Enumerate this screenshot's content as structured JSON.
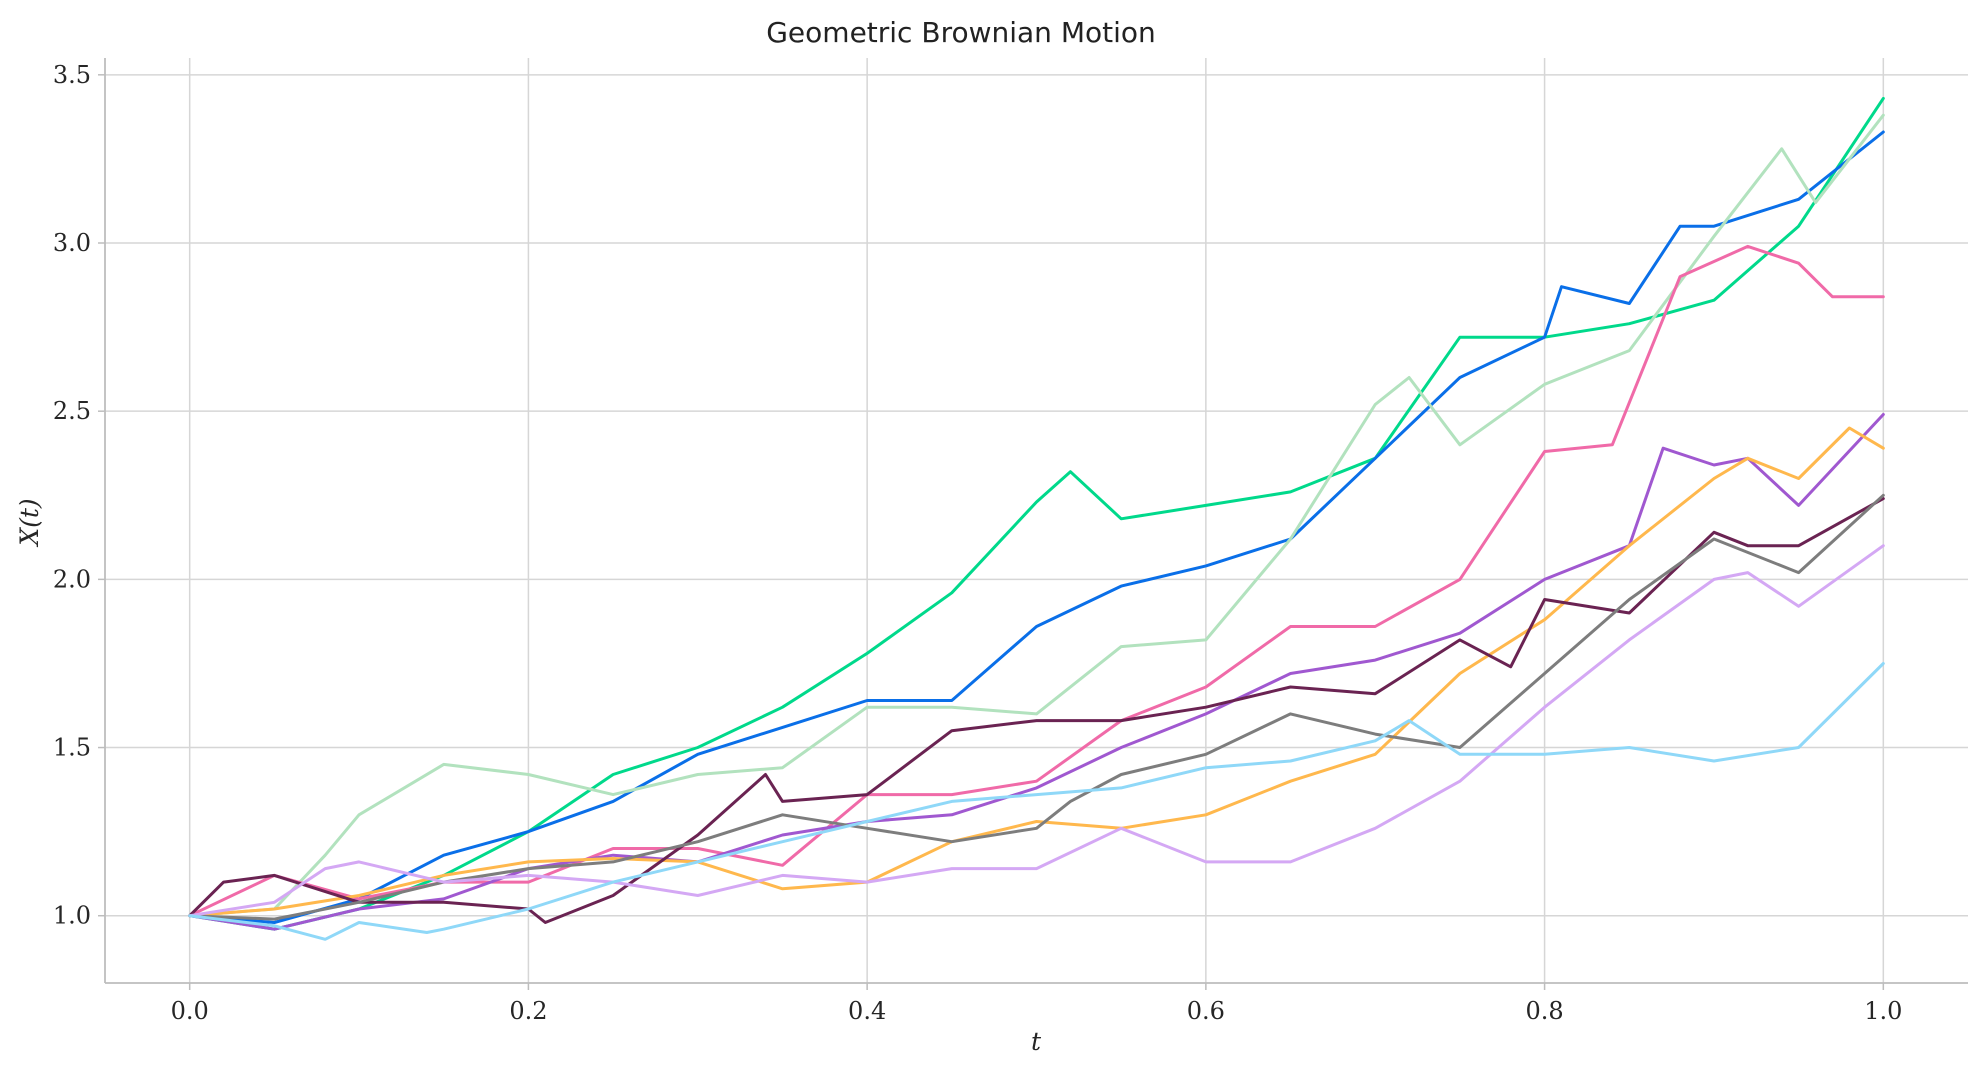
{
  "chart_data": {
    "type": "line",
    "title": "Geometric Brownian Motion",
    "xlabel": "t",
    "ylabel": "X(t)",
    "xlim": [
      -0.05,
      1.05
    ],
    "ylim": [
      0.8,
      3.55
    ],
    "xticks": [
      0.0,
      0.2,
      0.4,
      0.6,
      0.8,
      1.0
    ],
    "xtick_labels": [
      "0.0",
      "0.2",
      "0.4",
      "0.6",
      "0.8",
      "1.0"
    ],
    "yticks": [
      1.0,
      1.5,
      2.0,
      2.5,
      3.0,
      3.5
    ],
    "ytick_labels": [
      "1.0",
      "1.5",
      "2.0",
      "2.5",
      "3.0",
      "3.5"
    ],
    "grid": true,
    "legend": "none",
    "series": [
      {
        "color": "#00d98b",
        "x": [
          0,
          0.05,
          0.1,
          0.15,
          0.2,
          0.25,
          0.3,
          0.35,
          0.4,
          0.45,
          0.5,
          0.52,
          0.55,
          0.6,
          0.65,
          0.7,
          0.75,
          0.8,
          0.85,
          0.9,
          0.95,
          1.0
        ],
        "y": [
          1.0,
          0.96,
          1.02,
          1.12,
          1.25,
          1.42,
          1.5,
          1.62,
          1.78,
          1.96,
          2.23,
          2.32,
          2.18,
          2.22,
          2.26,
          2.36,
          2.72,
          2.72,
          2.76,
          2.83,
          3.05,
          3.43
        ]
      },
      {
        "color": "#0a6fe8",
        "x": [
          0,
          0.05,
          0.1,
          0.15,
          0.2,
          0.25,
          0.3,
          0.35,
          0.4,
          0.45,
          0.5,
          0.55,
          0.6,
          0.65,
          0.7,
          0.75,
          0.8,
          0.81,
          0.85,
          0.88,
          0.9,
          0.95,
          1.0
        ],
        "y": [
          1.0,
          0.98,
          1.05,
          1.18,
          1.25,
          1.34,
          1.48,
          1.56,
          1.64,
          1.64,
          1.86,
          1.98,
          2.04,
          2.12,
          2.36,
          2.6,
          2.72,
          2.87,
          2.82,
          3.05,
          3.05,
          3.13,
          3.33
        ]
      },
      {
        "color": "#b2e2be",
        "x": [
          0,
          0.05,
          0.08,
          0.1,
          0.15,
          0.2,
          0.25,
          0.3,
          0.35,
          0.4,
          0.45,
          0.5,
          0.55,
          0.6,
          0.65,
          0.7,
          0.72,
          0.75,
          0.8,
          0.85,
          0.9,
          0.94,
          0.96,
          1.0
        ],
        "y": [
          1.0,
          1.02,
          1.18,
          1.3,
          1.45,
          1.42,
          1.36,
          1.42,
          1.44,
          1.62,
          1.62,
          1.6,
          1.8,
          1.82,
          2.12,
          2.52,
          2.6,
          2.4,
          2.58,
          2.68,
          3.02,
          3.28,
          3.12,
          3.38
        ]
      },
      {
        "color": "#f06aa8",
        "x": [
          0,
          0.05,
          0.1,
          0.15,
          0.2,
          0.25,
          0.3,
          0.35,
          0.4,
          0.45,
          0.5,
          0.55,
          0.6,
          0.65,
          0.7,
          0.75,
          0.8,
          0.84,
          0.88,
          0.92,
          0.95,
          0.97,
          1.0
        ],
        "y": [
          1.0,
          1.12,
          1.05,
          1.1,
          1.1,
          1.2,
          1.2,
          1.15,
          1.36,
          1.36,
          1.4,
          1.58,
          1.68,
          1.86,
          1.86,
          2.0,
          2.38,
          2.4,
          2.9,
          2.99,
          2.94,
          2.84,
          2.84
        ]
      },
      {
        "color": "#a058d0",
        "x": [
          0,
          0.05,
          0.1,
          0.15,
          0.2,
          0.25,
          0.3,
          0.35,
          0.4,
          0.45,
          0.5,
          0.55,
          0.6,
          0.65,
          0.7,
          0.75,
          0.8,
          0.85,
          0.87,
          0.9,
          0.92,
          0.95,
          1.0
        ],
        "y": [
          1.0,
          0.96,
          1.02,
          1.05,
          1.14,
          1.18,
          1.16,
          1.24,
          1.28,
          1.3,
          1.38,
          1.5,
          1.6,
          1.72,
          1.76,
          1.84,
          2.0,
          2.1,
          2.39,
          2.34,
          2.36,
          2.22,
          2.49
        ]
      },
      {
        "color": "#ffb84d",
        "x": [
          0,
          0.05,
          0.1,
          0.15,
          0.2,
          0.25,
          0.3,
          0.35,
          0.4,
          0.45,
          0.5,
          0.55,
          0.6,
          0.65,
          0.7,
          0.75,
          0.8,
          0.85,
          0.9,
          0.92,
          0.95,
          0.98,
          1.0
        ],
        "y": [
          1.0,
          1.02,
          1.06,
          1.12,
          1.16,
          1.17,
          1.16,
          1.08,
          1.1,
          1.22,
          1.28,
          1.26,
          1.3,
          1.4,
          1.48,
          1.72,
          1.88,
          2.1,
          2.3,
          2.36,
          2.3,
          2.45,
          2.39
        ]
      },
      {
        "color": "#6a2352",
        "x": [
          0,
          0.02,
          0.05,
          0.1,
          0.15,
          0.2,
          0.21,
          0.25,
          0.3,
          0.34,
          0.35,
          0.4,
          0.45,
          0.5,
          0.55,
          0.6,
          0.65,
          0.7,
          0.75,
          0.78,
          0.8,
          0.85,
          0.9,
          0.92,
          0.95,
          1.0
        ],
        "y": [
          1.0,
          1.1,
          1.12,
          1.04,
          1.04,
          1.02,
          0.98,
          1.06,
          1.24,
          1.42,
          1.34,
          1.36,
          1.55,
          1.58,
          1.58,
          1.62,
          1.68,
          1.66,
          1.82,
          1.74,
          1.94,
          1.9,
          2.14,
          2.1,
          2.1,
          2.24
        ]
      },
      {
        "color": "#7d7d7d",
        "x": [
          0,
          0.05,
          0.1,
          0.15,
          0.2,
          0.25,
          0.3,
          0.35,
          0.4,
          0.45,
          0.5,
          0.52,
          0.55,
          0.6,
          0.65,
          0.7,
          0.75,
          0.8,
          0.85,
          0.9,
          0.95,
          1.0
        ],
        "y": [
          1.0,
          0.99,
          1.04,
          1.1,
          1.14,
          1.16,
          1.22,
          1.3,
          1.26,
          1.22,
          1.26,
          1.34,
          1.42,
          1.48,
          1.6,
          1.54,
          1.5,
          1.72,
          1.94,
          2.12,
          2.02,
          2.25
        ]
      },
      {
        "color": "#d4a8f4",
        "x": [
          0,
          0.05,
          0.08,
          0.1,
          0.15,
          0.2,
          0.25,
          0.3,
          0.35,
          0.4,
          0.45,
          0.5,
          0.55,
          0.6,
          0.65,
          0.7,
          0.75,
          0.8,
          0.85,
          0.9,
          0.92,
          0.95,
          1.0
        ],
        "y": [
          1.0,
          1.04,
          1.14,
          1.16,
          1.1,
          1.12,
          1.1,
          1.06,
          1.12,
          1.1,
          1.14,
          1.14,
          1.26,
          1.16,
          1.16,
          1.26,
          1.4,
          1.62,
          1.82,
          2.0,
          2.02,
          1.92,
          2.1
        ]
      },
      {
        "color": "#8fd8f8",
        "x": [
          0,
          0.05,
          0.08,
          0.1,
          0.14,
          0.15,
          0.2,
          0.25,
          0.3,
          0.35,
          0.4,
          0.45,
          0.5,
          0.55,
          0.6,
          0.65,
          0.7,
          0.72,
          0.75,
          0.8,
          0.85,
          0.9,
          0.95,
          1.0
        ],
        "y": [
          1.0,
          0.97,
          0.93,
          0.98,
          0.95,
          0.96,
          1.02,
          1.1,
          1.16,
          1.22,
          1.28,
          1.34,
          1.36,
          1.38,
          1.44,
          1.46,
          1.52,
          1.58,
          1.48,
          1.48,
          1.5,
          1.46,
          1.5,
          1.75
        ]
      }
    ]
  }
}
